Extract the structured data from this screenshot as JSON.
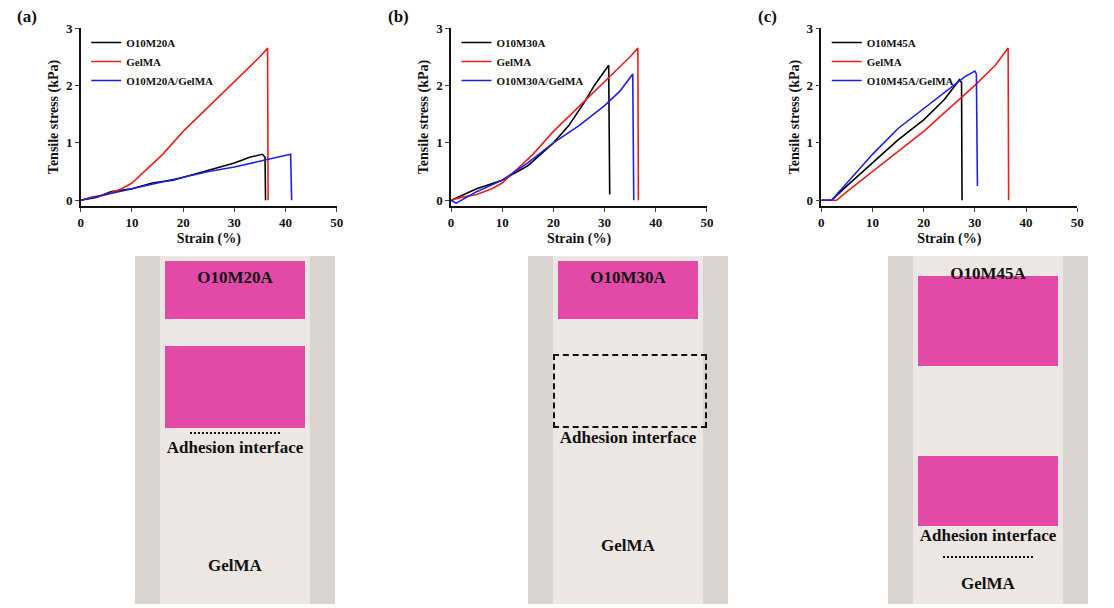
{
  "chart_data": [
    {
      "type": "line",
      "title": "(a)",
      "x_label": "Strain (%)",
      "y_label": "Tensile stress (kPa)",
      "xlim": [
        0,
        50
      ],
      "xticks": [
        0,
        10,
        20,
        30,
        40,
        50
      ],
      "ylim": [
        -0.1,
        3
      ],
      "yticks": [
        0,
        1,
        2,
        3
      ],
      "legend": "upper left",
      "series": [
        {
          "name": "O10M20A",
          "color": "#000000",
          "x": [
            0,
            3,
            6,
            10,
            14,
            18,
            22,
            26,
            30,
            33,
            35.5,
            36,
            36.1
          ],
          "values": [
            0,
            0.05,
            0.15,
            0.2,
            0.3,
            0.35,
            0.45,
            0.55,
            0.65,
            0.75,
            0.8,
            0.75,
            0
          ]
        },
        {
          "name": "GelMA",
          "color": "#e8211f",
          "x": [
            0,
            2,
            5,
            8,
            10,
            13,
            16,
            20,
            24,
            28,
            32,
            35,
            36.5,
            36.6
          ],
          "values": [
            0,
            0.05,
            0.1,
            0.2,
            0.3,
            0.55,
            0.8,
            1.2,
            1.55,
            1.9,
            2.25,
            2.5,
            2.65,
            0
          ]
        },
        {
          "name": "O10M20A/GelMA",
          "color": "#1f1fe8",
          "x": [
            0,
            5,
            10,
            15,
            20,
            25,
            30,
            35,
            38,
            41,
            41.2
          ],
          "values": [
            0,
            0.1,
            0.2,
            0.3,
            0.4,
            0.5,
            0.58,
            0.68,
            0.75,
            0.8,
            0
          ]
        }
      ]
    },
    {
      "type": "line",
      "title": "(b)",
      "x_label": "Strain (%)",
      "y_label": "Tensile stress (kPa)",
      "xlim": [
        0,
        50
      ],
      "xticks": [
        0,
        10,
        20,
        30,
        40,
        50
      ],
      "ylim": [
        -0.1,
        3
      ],
      "yticks": [
        0,
        1,
        2,
        3
      ],
      "legend": "upper left",
      "series": [
        {
          "name": "O10M30A",
          "color": "#000000",
          "x": [
            0,
            5,
            10,
            15,
            20,
            23,
            26,
            28,
            30,
            30.8,
            31
          ],
          "values": [
            0,
            0.2,
            0.35,
            0.6,
            1.0,
            1.3,
            1.7,
            2.0,
            2.25,
            2.35,
            0.1
          ]
        },
        {
          "name": "GelMA",
          "color": "#e8211f",
          "x": [
            0,
            2,
            5,
            8,
            10,
            13,
            16,
            20,
            24,
            28,
            32,
            35,
            36.5,
            36.6
          ],
          "values": [
            0,
            0.05,
            0.1,
            0.2,
            0.3,
            0.55,
            0.8,
            1.2,
            1.55,
            1.9,
            2.25,
            2.5,
            2.65,
            0
          ]
        },
        {
          "name": "O10M30A/GelMA",
          "color": "#1f1fe8",
          "x": [
            0,
            1,
            5,
            10,
            15,
            20,
            25,
            30,
            33,
            35.5,
            35.7
          ],
          "values": [
            0,
            -0.05,
            0.15,
            0.35,
            0.65,
            1.0,
            1.3,
            1.65,
            1.9,
            2.2,
            0
          ]
        }
      ]
    },
    {
      "type": "line",
      "title": "(c)",
      "x_label": "Strain (%)",
      "y_label": "Tensile stress (kPa)",
      "xlim": [
        0,
        50
      ],
      "xticks": [
        0,
        10,
        20,
        30,
        40,
        50
      ],
      "ylim": [
        -0.1,
        3
      ],
      "yticks": [
        0,
        1,
        2,
        3
      ],
      "legend": "upper left",
      "series": [
        {
          "name": "O10M45A",
          "color": "#000000",
          "x": [
            0,
            2,
            5,
            10,
            15,
            20,
            24,
            27,
            27.4,
            27.5
          ],
          "values": [
            0,
            0,
            0.25,
            0.65,
            1.05,
            1.4,
            1.75,
            2.1,
            2.05,
            0
          ]
        },
        {
          "name": "GelMA",
          "color": "#e8211f",
          "x": [
            0,
            3,
            5,
            10,
            15,
            20,
            25,
            30,
            34,
            36.5,
            36.6
          ],
          "values": [
            0,
            0,
            0.15,
            0.5,
            0.85,
            1.2,
            1.6,
            2.0,
            2.35,
            2.65,
            0
          ]
        },
        {
          "name": "O10M45A/GelMA",
          "color": "#1f1fe8",
          "x": [
            0,
            2,
            5,
            10,
            15,
            20,
            25,
            28,
            30,
            30.3,
            30.5
          ],
          "values": [
            0,
            0,
            0.3,
            0.8,
            1.25,
            1.6,
            1.95,
            2.15,
            2.25,
            2.2,
            0.25
          ]
        }
      ]
    }
  ],
  "photos": [
    {
      "top_label": "O10M20A",
      "interface_label": "Adhesion interface",
      "bottom_label": "GelMA"
    },
    {
      "top_label": "O10M30A",
      "interface_label": "Adhesion interface",
      "bottom_label": "GelMA"
    },
    {
      "top_label": "O10M45A",
      "interface_label": "Adhesion interface",
      "bottom_label": "GelMA"
    }
  ]
}
